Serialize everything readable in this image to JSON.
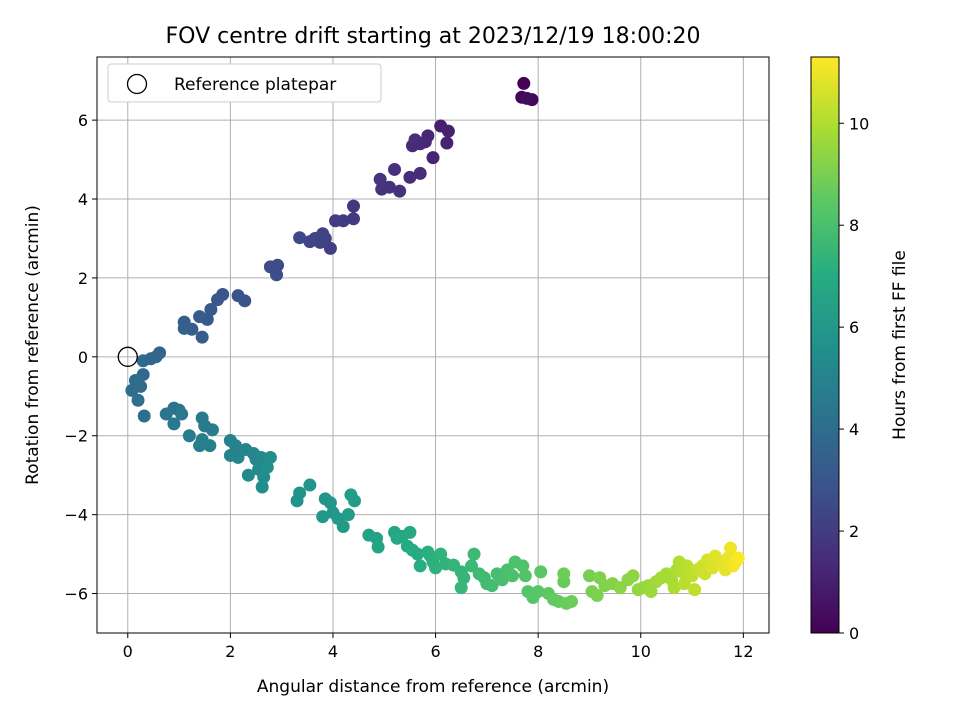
{
  "chart_data": {
    "type": "scatter",
    "title": "FOV centre drift starting at 2023/12/19 18:00:20",
    "xlabel": "Angular distance from reference (arcmin)",
    "ylabel": "Rotation from reference (arcmin)",
    "xlim": [
      -0.6,
      12.5
    ],
    "ylim": [
      -7.0,
      7.6
    ],
    "xticks": [
      0,
      2,
      4,
      6,
      8,
      10,
      12
    ],
    "yticks": [
      -6,
      -4,
      -2,
      0,
      2,
      4,
      6
    ],
    "grid": true,
    "colormap": "viridis",
    "colorbar": {
      "label": "Hours from first FF file",
      "range": [
        0,
        11.3
      ],
      "ticks": [
        0,
        2,
        4,
        6,
        8,
        10
      ]
    },
    "legend": {
      "position": "upper-left",
      "entries": [
        {
          "label": "Reference platepar",
          "marker": "open-circle"
        }
      ]
    },
    "reference_point": {
      "x": 0,
      "y": 0
    },
    "series": [
      {
        "points": [
          [
            7.72,
            6.93,
            0.05
          ],
          [
            7.68,
            6.58,
            0.15
          ],
          [
            7.88,
            6.52,
            0.25
          ],
          [
            7.78,
            6.55,
            0.35
          ],
          [
            6.1,
            5.85,
            1.0
          ],
          [
            6.25,
            5.72,
            1.05
          ],
          [
            6.22,
            5.42,
            1.1
          ],
          [
            5.95,
            5.05,
            1.15
          ],
          [
            5.85,
            5.6,
            1.2
          ],
          [
            5.8,
            5.45,
            1.25
          ],
          [
            5.7,
            5.4,
            1.3
          ],
          [
            5.55,
            5.35,
            1.35
          ],
          [
            5.6,
            5.5,
            1.4
          ],
          [
            5.7,
            4.65,
            1.45
          ],
          [
            5.5,
            4.55,
            1.5
          ],
          [
            5.2,
            4.75,
            1.55
          ],
          [
            5.3,
            4.2,
            1.6
          ],
          [
            5.1,
            4.3,
            1.65
          ],
          [
            4.95,
            4.25,
            1.7
          ],
          [
            4.92,
            4.5,
            1.75
          ],
          [
            4.4,
            3.82,
            1.85
          ],
          [
            4.4,
            3.5,
            1.9
          ],
          [
            4.2,
            3.45,
            1.95
          ],
          [
            4.05,
            3.45,
            2.0
          ],
          [
            3.95,
            2.75,
            2.1
          ],
          [
            3.85,
            3.0,
            2.15
          ],
          [
            3.75,
            2.9,
            2.2
          ],
          [
            3.8,
            3.12,
            2.25
          ],
          [
            3.65,
            3.0,
            2.3
          ],
          [
            3.55,
            2.92,
            2.35
          ],
          [
            3.35,
            3.02,
            2.4
          ],
          [
            2.92,
            2.32,
            2.55
          ],
          [
            2.78,
            2.28,
            2.6
          ],
          [
            2.9,
            2.08,
            2.65
          ],
          [
            2.28,
            1.42,
            2.85
          ],
          [
            2.15,
            1.55,
            2.9
          ],
          [
            1.85,
            1.58,
            3.0
          ],
          [
            1.75,
            1.45,
            3.05
          ],
          [
            1.62,
            1.2,
            3.15
          ],
          [
            1.55,
            0.95,
            3.2
          ],
          [
            1.4,
            1.02,
            3.25
          ],
          [
            1.45,
            0.5,
            3.3
          ],
          [
            1.25,
            0.7,
            3.35
          ],
          [
            1.1,
            0.88,
            3.4
          ],
          [
            1.1,
            0.72,
            3.45
          ],
          [
            0.62,
            0.1,
            3.65
          ],
          [
            0.55,
            0.0,
            3.7
          ],
          [
            0.45,
            -0.05,
            3.75
          ],
          [
            0.3,
            -0.1,
            3.8
          ],
          [
            0.3,
            -0.45,
            3.85
          ],
          [
            0.25,
            -0.75,
            3.9
          ],
          [
            0.15,
            -0.6,
            3.95
          ],
          [
            0.08,
            -0.85,
            4.0
          ],
          [
            0.2,
            -1.1,
            4.05
          ],
          [
            0.32,
            -1.5,
            4.1
          ],
          [
            0.9,
            -1.3,
            4.3
          ],
          [
            1.0,
            -1.35,
            4.35
          ],
          [
            0.75,
            -1.45,
            4.4
          ],
          [
            1.05,
            -1.45,
            4.45
          ],
          [
            0.9,
            -1.7,
            4.5
          ],
          [
            1.45,
            -1.55,
            4.55
          ],
          [
            1.5,
            -1.75,
            4.6
          ],
          [
            1.65,
            -1.85,
            4.65
          ],
          [
            1.2,
            -2.0,
            4.7
          ],
          [
            1.45,
            -2.1,
            4.75
          ],
          [
            1.4,
            -2.25,
            4.8
          ],
          [
            1.6,
            -2.25,
            4.85
          ],
          [
            2.0,
            -2.12,
            4.9
          ],
          [
            2.1,
            -2.25,
            4.95
          ],
          [
            2.0,
            -2.5,
            5.0
          ],
          [
            2.15,
            -2.55,
            5.05
          ],
          [
            2.3,
            -2.35,
            5.1
          ],
          [
            2.45,
            -2.45,
            5.15
          ],
          [
            2.5,
            -2.6,
            5.2
          ],
          [
            2.6,
            -2.55,
            5.25
          ],
          [
            2.35,
            -3.0,
            5.3
          ],
          [
            2.55,
            -2.85,
            5.35
          ],
          [
            2.65,
            -3.05,
            5.4
          ],
          [
            2.62,
            -3.3,
            5.45
          ],
          [
            2.78,
            -2.55,
            5.5
          ],
          [
            2.72,
            -2.8,
            5.55
          ],
          [
            3.3,
            -3.65,
            5.7
          ],
          [
            3.35,
            -3.45,
            5.75
          ],
          [
            3.55,
            -3.25,
            5.8
          ],
          [
            3.85,
            -3.6,
            5.85
          ],
          [
            3.95,
            -3.7,
            5.9
          ],
          [
            4.0,
            -3.95,
            5.95
          ],
          [
            3.8,
            -4.05,
            6.0
          ],
          [
            4.1,
            -4.1,
            6.05
          ],
          [
            4.2,
            -4.3,
            6.1
          ],
          [
            4.3,
            -4.0,
            6.15
          ],
          [
            4.35,
            -3.5,
            6.2
          ],
          [
            4.42,
            -3.65,
            6.25
          ],
          [
            4.7,
            -4.52,
            6.5
          ],
          [
            4.85,
            -4.6,
            6.55
          ],
          [
            4.88,
            -4.82,
            6.6
          ],
          [
            5.2,
            -4.45,
            6.7
          ],
          [
            5.25,
            -4.6,
            6.75
          ],
          [
            5.35,
            -4.55,
            6.8
          ],
          [
            5.5,
            -4.45,
            6.85
          ],
          [
            5.45,
            -4.8,
            6.9
          ],
          [
            5.55,
            -4.9,
            6.95
          ],
          [
            5.65,
            -5.0,
            7.0
          ],
          [
            5.7,
            -5.3,
            7.05
          ],
          [
            5.85,
            -4.95,
            7.1
          ],
          [
            5.9,
            -5.05,
            7.15
          ],
          [
            5.95,
            -5.2,
            7.2
          ],
          [
            6.0,
            -5.35,
            7.25
          ],
          [
            6.1,
            -5.0,
            7.3
          ],
          [
            6.2,
            -5.25,
            7.35
          ],
          [
            6.35,
            -5.28,
            7.4
          ],
          [
            6.5,
            -5.45,
            7.45
          ],
          [
            6.55,
            -5.6,
            7.5
          ],
          [
            6.5,
            -5.85,
            7.55
          ],
          [
            6.7,
            -5.3,
            7.6
          ],
          [
            6.75,
            -5.0,
            7.65
          ],
          [
            6.85,
            -5.5,
            7.7
          ],
          [
            6.95,
            -5.6,
            7.75
          ],
          [
            7.0,
            -5.75,
            7.8
          ],
          [
            7.1,
            -5.8,
            7.85
          ],
          [
            7.2,
            -5.5,
            7.9
          ],
          [
            7.3,
            -5.65,
            7.95
          ],
          [
            7.4,
            -5.4,
            8.0
          ],
          [
            7.5,
            -5.55,
            8.05
          ],
          [
            7.55,
            -5.2,
            8.1
          ],
          [
            7.7,
            -5.3,
            8.15
          ],
          [
            7.75,
            -5.55,
            8.2
          ],
          [
            7.8,
            -5.95,
            8.25
          ],
          [
            7.9,
            -6.1,
            8.3
          ],
          [
            8.0,
            -5.95,
            8.35
          ],
          [
            8.05,
            -5.45,
            8.4
          ],
          [
            8.2,
            -6.0,
            8.5
          ],
          [
            8.3,
            -6.15,
            8.55
          ],
          [
            8.4,
            -6.2,
            8.6
          ],
          [
            8.5,
            -5.7,
            8.65
          ],
          [
            8.55,
            -6.25,
            8.7
          ],
          [
            8.65,
            -6.2,
            8.75
          ],
          [
            8.5,
            -5.5,
            8.8
          ],
          [
            9.0,
            -5.55,
            8.95
          ],
          [
            9.05,
            -5.95,
            9.0
          ],
          [
            9.15,
            -6.05,
            9.05
          ],
          [
            9.2,
            -5.6,
            9.1
          ],
          [
            9.3,
            -5.8,
            9.15
          ],
          [
            9.45,
            -5.75,
            9.2
          ],
          [
            9.6,
            -5.85,
            9.3
          ],
          [
            9.75,
            -5.65,
            9.35
          ],
          [
            9.85,
            -5.55,
            9.4
          ],
          [
            9.95,
            -5.9,
            9.45
          ],
          [
            10.05,
            -5.85,
            9.5
          ],
          [
            10.15,
            -5.8,
            9.6
          ],
          [
            10.2,
            -5.95,
            9.65
          ],
          [
            10.3,
            -5.7,
            9.7
          ],
          [
            10.4,
            -5.6,
            9.75
          ],
          [
            10.5,
            -5.5,
            9.8
          ],
          [
            10.6,
            -5.65,
            9.85
          ],
          [
            10.65,
            -5.85,
            9.9
          ],
          [
            10.7,
            -5.4,
            9.95
          ],
          [
            10.75,
            -5.2,
            10.0
          ],
          [
            10.8,
            -5.45,
            10.1
          ],
          [
            10.85,
            -5.75,
            10.15
          ],
          [
            10.9,
            -5.3,
            10.2
          ],
          [
            11.0,
            -5.55,
            10.25
          ],
          [
            11.05,
            -5.9,
            10.3
          ],
          [
            11.1,
            -5.4,
            10.4
          ],
          [
            11.2,
            -5.3,
            10.45
          ],
          [
            11.25,
            -5.5,
            10.5
          ],
          [
            11.3,
            -5.15,
            10.6
          ],
          [
            11.4,
            -5.35,
            10.7
          ],
          [
            11.45,
            -5.05,
            10.8
          ],
          [
            11.55,
            -5.25,
            10.85
          ],
          [
            11.65,
            -5.4,
            10.9
          ],
          [
            11.7,
            -5.1,
            11.0
          ],
          [
            11.75,
            -4.85,
            11.05
          ],
          [
            11.8,
            -5.3,
            11.1
          ],
          [
            11.85,
            -5.2,
            11.2
          ],
          [
            11.9,
            -5.1,
            11.3
          ]
        ]
      }
    ]
  }
}
